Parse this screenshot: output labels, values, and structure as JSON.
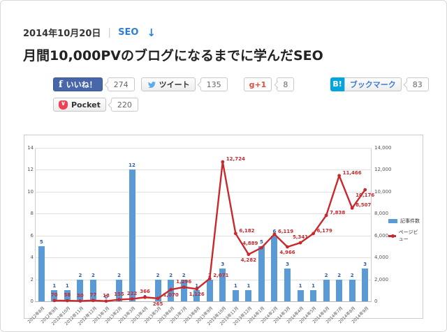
{
  "header": {
    "date": "2014年10月20日",
    "separator": "|",
    "category": "SEO",
    "arrow": "↓",
    "title": "月間10,000PVのブログになるまでに学んだSEO"
  },
  "share": {
    "facebook": {
      "icon": "f",
      "label": "いいね！",
      "count": "274"
    },
    "twitter": {
      "label": "ツイート",
      "count": "135"
    },
    "gplus": {
      "label": "g+1",
      "count": "8"
    },
    "hatena": {
      "icon": "B!",
      "label": "ブックマーク",
      "count": "83"
    },
    "pocket": {
      "icon": "v",
      "label": "Pocket",
      "count": "220"
    }
  },
  "colors": {
    "link": "#2d7fd3",
    "facebook_blue": "#4867aa",
    "twitter_bird": "#59adeb",
    "google_red": "#dd4b39",
    "hatena_blue": "#00a4de",
    "pocket_red": "#ef4056",
    "bar_blue": "#5b9bd5",
    "line_red": "#c9282d"
  },
  "chart_data": {
    "type": "bar",
    "subtype": "combo bar+line, dual axis",
    "categories": [
      "2012年8月",
      "2012年9月",
      "2012年10月",
      "2012年11月",
      "2012年12月",
      "2013年1月",
      "2013年2月",
      "2013年3月",
      "2013年4月",
      "2013年5月",
      "2013年6月",
      "2013年7月",
      "2013年8月",
      "2013年9月",
      "2013年10月",
      "2013年11月",
      "2013年12月",
      "2014年1月",
      "2014年2月",
      "2014年3月",
      "2014年4月",
      "2014年5月",
      "2014年6月",
      "2014年7月",
      "2014年8月",
      "2014年9月"
    ],
    "series": [
      {
        "name": "記事件数",
        "type": "bar",
        "axis": "left",
        "color": "#5b9bd5",
        "values": [
          5,
          1,
          1,
          2,
          2,
          0,
          2,
          12,
          0,
          2,
          2,
          2,
          1,
          2,
          3,
          1,
          1,
          5,
          6,
          3,
          1,
          1,
          2,
          2,
          2,
          3
        ]
      },
      {
        "name": "ページビュー",
        "type": "line",
        "axis": "right",
        "color": "#c9282d",
        "values": [
          null,
          70,
          58,
          30,
          77,
          18,
          155,
          222,
          366,
          265,
          1070,
          1296,
          1126,
          2071,
          12724,
          6182,
          4282,
          4889,
          6119,
          4966,
          5341,
          6179,
          7838,
          11466,
          8507,
          10176
        ],
        "label_pos": [
          null,
          "above",
          "above",
          "above",
          "above",
          "above",
          "above",
          "above",
          "above",
          "below",
          "below",
          "above",
          "below",
          "right",
          "right",
          "right",
          "below",
          "left",
          "right",
          "below",
          "above",
          "right",
          "right",
          "right",
          "right",
          "below"
        ]
      }
    ],
    "left_axis": {
      "min": 0,
      "max": 14,
      "step": 2
    },
    "right_axis": {
      "min": 0,
      "max": 14000,
      "step": 2000
    },
    "grid": true,
    "legend_position": "right",
    "title": "",
    "xlabel": "",
    "ylabel": ""
  }
}
